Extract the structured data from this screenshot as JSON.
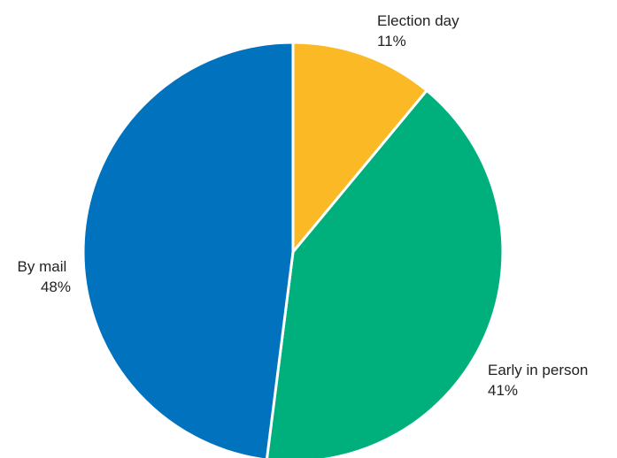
{
  "chart_data": {
    "type": "pie",
    "title": "",
    "start": "top, clockwise",
    "slices": [
      {
        "label": "Election day",
        "value": 11,
        "value_label": "11%",
        "color": "#FBBA25"
      },
      {
        "label": "Early in person",
        "value": 41,
        "value_label": "41%",
        "color": "#00B07C"
      },
      {
        "label": "By mail",
        "value": 48,
        "value_label": "48%",
        "color": "#0172BD"
      }
    ]
  }
}
